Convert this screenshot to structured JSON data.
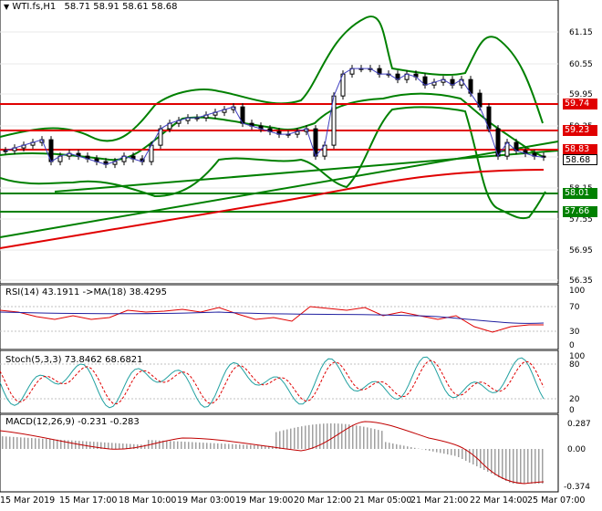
{
  "header": {
    "symbol": "WTI.fs,H1",
    "ohlc": "58.71 58.91 58.61 58.68"
  },
  "main_axis": {
    "ticks": [
      "61.15",
      "60.55",
      "59.95",
      "59.35",
      "58.75",
      "58.15",
      "57.55",
      "56.95",
      "56.35"
    ]
  },
  "levels": [
    {
      "value": "59.74",
      "color": "#e00000"
    },
    {
      "value": "59.23",
      "color": "#e00000"
    },
    {
      "value": "58.83",
      "color": "#e00000"
    },
    {
      "value": "58.01",
      "color": "#008000"
    },
    {
      "value": "57.66",
      "color": "#008000"
    }
  ],
  "last_price": {
    "value": "58.68"
  },
  "rsi": {
    "label": "RSI(14) 43.1911  ->MA(18) 38.4295",
    "ticks": [
      "100",
      "70",
      "30",
      "0"
    ]
  },
  "stoch": {
    "label": "Stoch(5,3,3) 73.8462 68.6821",
    "ticks": [
      "100",
      "80",
      "20",
      "0"
    ]
  },
  "macd": {
    "label": "MACD(12,26,9) -0.231 -0.283",
    "ticks": [
      "0.287",
      "0.00",
      "-0.374"
    ]
  },
  "time_axis": [
    "15 Mar 2019",
    "15 Mar 17:00",
    "18 Mar 10:00",
    "19 Mar 03:00",
    "19 Mar 19:00",
    "20 Mar 12:00",
    "21 Mar 05:00",
    "21 Mar 21:00",
    "22 Mar 14:00",
    "25 Mar 07:00"
  ],
  "chart_data": {
    "type": "line",
    "title": "WTI.fs,H1",
    "x": [
      0,
      10,
      20,
      30,
      40,
      50,
      60,
      70,
      80,
      90,
      100,
      110,
      120,
      130,
      140,
      150,
      160,
      170,
      180,
      190,
      200,
      210,
      220,
      230,
      240,
      250,
      260,
      270,
      280,
      290,
      300,
      310,
      320,
      330,
      340,
      350,
      360,
      370,
      380,
      390,
      400,
      410,
      420,
      430,
      440,
      450,
      460,
      470,
      480,
      490,
      500,
      510,
      520,
      530,
      540,
      550,
      560,
      570,
      580,
      590
    ],
    "series": [
      {
        "values": [
          58.8,
          58.85,
          58.9,
          58.95,
          59.0,
          58.6,
          58.7,
          58.75,
          58.7,
          58.65,
          58.6,
          58.55,
          58.6,
          58.7,
          58.65,
          58.6,
          58.9,
          59.2,
          59.3,
          59.35,
          59.4,
          59.4,
          59.45,
          59.5,
          59.55,
          59.6,
          59.3,
          59.25,
          59.2,
          59.15,
          59.1,
          59.1,
          59.15,
          59.2,
          58.7,
          58.9,
          59.8,
          60.2,
          60.3,
          60.3,
          60.3,
          60.2,
          60.2,
          60.1,
          60.2,
          60.15,
          60.0,
          60.05,
          60.1,
          60.0,
          60.1,
          59.85,
          59.6,
          59.2,
          58.7,
          58.95,
          58.8,
          58.75,
          58.7,
          58.68
        ]
      }
    ],
    "ylim": [
      56.35,
      61.45
    ]
  }
}
